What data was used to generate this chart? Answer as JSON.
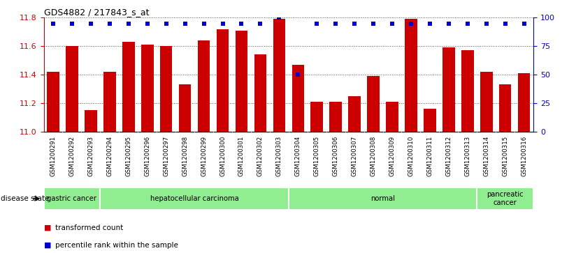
{
  "title": "GDS4882 / 217843_s_at",
  "samples": [
    "GSM1200291",
    "GSM1200292",
    "GSM1200293",
    "GSM1200294",
    "GSM1200295",
    "GSM1200296",
    "GSM1200297",
    "GSM1200298",
    "GSM1200299",
    "GSM1200300",
    "GSM1200301",
    "GSM1200302",
    "GSM1200303",
    "GSM1200304",
    "GSM1200305",
    "GSM1200306",
    "GSM1200307",
    "GSM1200308",
    "GSM1200309",
    "GSM1200310",
    "GSM1200311",
    "GSM1200312",
    "GSM1200313",
    "GSM1200314",
    "GSM1200315",
    "GSM1200316"
  ],
  "bar_values": [
    11.42,
    11.6,
    11.15,
    11.42,
    11.63,
    11.61,
    11.6,
    11.33,
    11.64,
    11.72,
    11.71,
    11.54,
    11.79,
    11.47,
    11.21,
    11.21,
    11.25,
    11.39,
    11.21,
    11.79,
    11.16,
    11.59,
    11.57,
    11.42,
    11.33,
    11.41
  ],
  "percentile_values": [
    95,
    95,
    95,
    95,
    95,
    95,
    95,
    95,
    95,
    95,
    95,
    95,
    100,
    50,
    95,
    95,
    95,
    95,
    95,
    95,
    95,
    95,
    95,
    95,
    95,
    95
  ],
  "disease_groups": [
    {
      "label": "gastric cancer",
      "start": 0,
      "end": 2
    },
    {
      "label": "hepatocellular carcinoma",
      "start": 3,
      "end": 12
    },
    {
      "label": "normal",
      "start": 13,
      "end": 22
    },
    {
      "label": "pancreatic\ncancer",
      "start": 23,
      "end": 25
    }
  ],
  "group_color": "#90EE90",
  "ylim_left": [
    11.0,
    11.8
  ],
  "ylim_right": [
    0,
    100
  ],
  "yticks_left": [
    11.0,
    11.2,
    11.4,
    11.6,
    11.8
  ],
  "yticks_right": [
    0,
    25,
    50,
    75,
    100
  ],
  "bar_color": "#CC0000",
  "percentile_color": "#0000CC",
  "tick_area_color": "#CCCCCC",
  "ylabel_left_color": "#CC0000",
  "ylabel_right_color": "#0000CC",
  "grid_line_color": "#555555"
}
